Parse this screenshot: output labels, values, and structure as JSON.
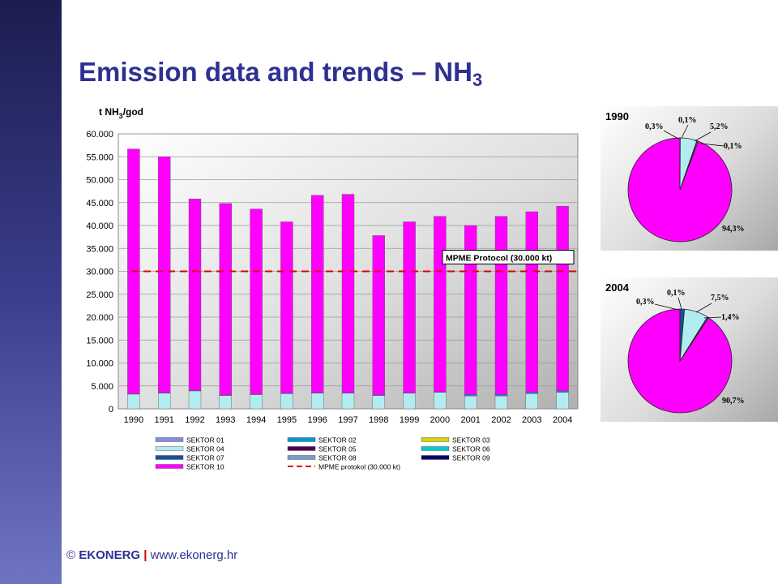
{
  "slide": {
    "title_main": "Emission data and trends – NH",
    "title_sub": "3"
  },
  "footer": {
    "copyright": "©",
    "brand": "EKONERG",
    "separator": "|",
    "url": "www.ekonerg.hr"
  },
  "colors": {
    "sidebar_top": "#1c1d4f",
    "sidebar_bottom": "#6f74c2",
    "title": "#2e3192",
    "sektor10": "#ff00ff",
    "sektor04": "#b3ecf0",
    "sektor02": "#0099cc",
    "protocol_line": "#e00000"
  },
  "chart_data": [
    {
      "type": "bar",
      "stacked": true,
      "ylabel": "t NH3/god",
      "ylabel_main": "t NH",
      "ylabel_sub": "3",
      "ylabel_tail": "/god",
      "ylim": [
        0,
        60000
      ],
      "yticks": [
        "0",
        "5.000",
        "10.000",
        "15.000",
        "20.000",
        "25.000",
        "30.000",
        "35.000",
        "40.000",
        "45.000",
        "50.000",
        "55.000",
        "60.000"
      ],
      "grid": true,
      "categories": [
        "1990",
        "1991",
        "1992",
        "1993",
        "1994",
        "1995",
        "1996",
        "1997",
        "1998",
        "1999",
        "2000",
        "2001",
        "2002",
        "2003",
        "2004"
      ],
      "series": [
        {
          "name": "SEKTOR 04",
          "color": "#b3ecf0",
          "values": [
            3200,
            3400,
            3900,
            2900,
            3100,
            3300,
            3400,
            3400,
            2900,
            3400,
            3600,
            2800,
            2800,
            3300,
            3600
          ]
        },
        {
          "name": "SEKTOR 02",
          "color": "#0099cc",
          "values": [
            100,
            100,
            100,
            100,
            100,
            100,
            100,
            100,
            100,
            100,
            100,
            300,
            300,
            300,
            300
          ]
        },
        {
          "name": "SEKTOR 10",
          "color": "#ff00ff",
          "values": [
            53400,
            51500,
            41800,
            41800,
            40400,
            37400,
            43100,
            43300,
            34800,
            37300,
            38300,
            36900,
            38900,
            39400,
            40300
          ]
        }
      ],
      "reference_line": {
        "name": "MPME protokol (30.000 kt)",
        "value": 30000,
        "label": "MPME Protocol (30.000 kt)"
      },
      "legend_position": "bottom",
      "legend": [
        {
          "name": "SEKTOR 01",
          "color": "#8a8ae0",
          "style": "bar"
        },
        {
          "name": "SEKTOR 02",
          "color": "#0099cc",
          "style": "bar"
        },
        {
          "name": "SEKTOR 03",
          "color": "#d4d400",
          "style": "bar"
        },
        {
          "name": "SEKTOR 04",
          "color": "#b3ecf0",
          "style": "bar"
        },
        {
          "name": "SEKTOR 05",
          "color": "#500050",
          "style": "bar"
        },
        {
          "name": "SEKTOR 06",
          "color": "#00cccc",
          "style": "bar"
        },
        {
          "name": "SEKTOR 07",
          "color": "#1a4f9c",
          "style": "bar"
        },
        {
          "name": "SEKTOR 08",
          "color": "#7a9cc8",
          "style": "bar"
        },
        {
          "name": "SEKTOR 09",
          "color": "#000066",
          "style": "bar"
        },
        {
          "name": "SEKTOR 10",
          "color": "#ff00ff",
          "style": "bar"
        },
        {
          "name": "MPME protokol (30.000 kt)",
          "color": "#e00000",
          "style": "dash"
        }
      ]
    },
    {
      "type": "pie",
      "title": "1990",
      "slices": [
        {
          "label": "94,3%",
          "value": 94.3,
          "color": "#ff00ff"
        },
        {
          "label": "0,3%",
          "value": 0.3,
          "color": "#8a8ae0"
        },
        {
          "label": "0,1%",
          "value": 0.1,
          "color": "#0099cc"
        },
        {
          "label": "5,2%",
          "value": 5.2,
          "color": "#b3ecf0"
        },
        {
          "label": "0,1%",
          "value": 0.1,
          "color": "#1a4f9c"
        }
      ]
    },
    {
      "type": "pie",
      "title": "2004",
      "slices": [
        {
          "label": "90,7%",
          "value": 90.7,
          "color": "#ff00ff"
        },
        {
          "label": "0,3%",
          "value": 0.3,
          "color": "#8a8ae0"
        },
        {
          "label": "0,1%",
          "value": 0.1,
          "color": "#0099cc"
        },
        {
          "label": "7,5%",
          "value": 7.5,
          "color": "#b3ecf0"
        },
        {
          "label": "1,4%",
          "value": 1.4,
          "color": "#1a4f9c"
        }
      ]
    }
  ]
}
